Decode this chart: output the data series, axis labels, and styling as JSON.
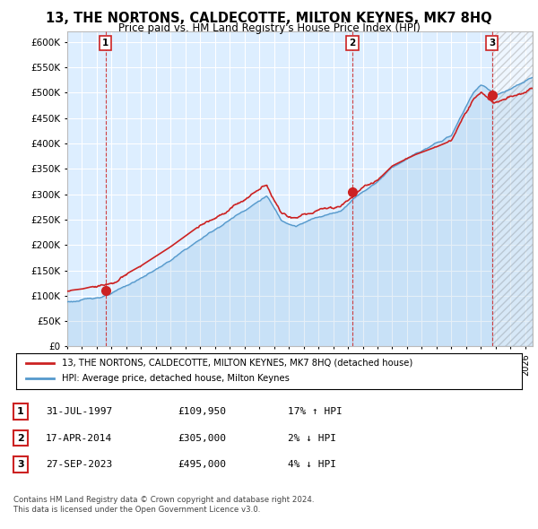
{
  "title": "13, THE NORTONS, CALDECOTTE, MILTON KEYNES, MK7 8HQ",
  "subtitle": "Price paid vs. HM Land Registry's House Price Index (HPI)",
  "ylim": [
    0,
    620000
  ],
  "yticks": [
    0,
    50000,
    100000,
    150000,
    200000,
    250000,
    300000,
    350000,
    400000,
    450000,
    500000,
    550000,
    600000
  ],
  "xlim_start": 1995.0,
  "xlim_end": 2026.5,
  "background_color": "#ffffff",
  "plot_bg_color": "#ddeeff",
  "grid_color": "#ffffff",
  "sale_dates": [
    1997.58,
    2014.29,
    2023.74
  ],
  "sale_prices": [
    109950,
    305000,
    495000
  ],
  "sale_labels": [
    "1",
    "2",
    "3"
  ],
  "legend_label_red": "13, THE NORTONS, CALDECOTTE, MILTON KEYNES, MK7 8HQ (detached house)",
  "legend_label_blue": "HPI: Average price, detached house, Milton Keynes",
  "table_rows": [
    {
      "label": "1",
      "date": "31-JUL-1997",
      "price": "£109,950",
      "change": "17% ↑ HPI"
    },
    {
      "label": "2",
      "date": "17-APR-2014",
      "price": "£305,000",
      "change": "2% ↓ HPI"
    },
    {
      "label": "3",
      "date": "27-SEP-2023",
      "price": "£495,000",
      "change": "4% ↓ HPI"
    }
  ],
  "footer": "Contains HM Land Registry data © Crown copyright and database right 2024.\nThis data is licensed under the Open Government Licence v3.0.",
  "hpi_color": "#5599cc",
  "price_color": "#cc2222",
  "sale_marker_color": "#cc2222",
  "vline_color": "#cc2222"
}
